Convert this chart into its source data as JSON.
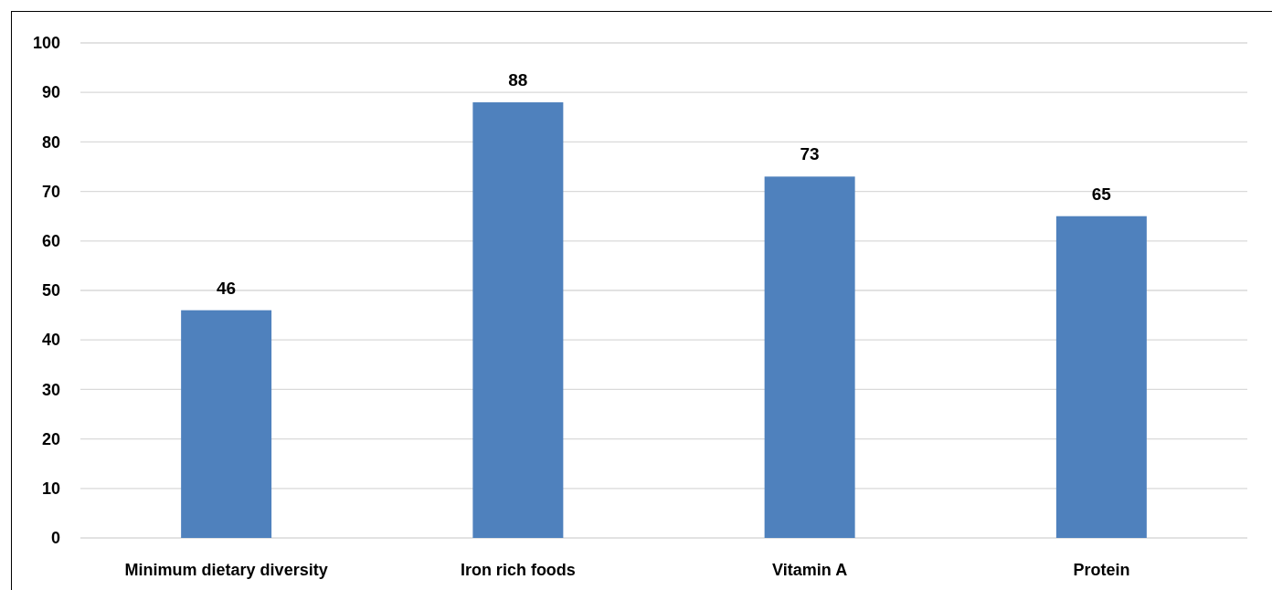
{
  "chart_data": {
    "type": "bar",
    "categories": [
      "Minimum dietary diversity",
      "Iron rich foods",
      "Vitamin A",
      "Protein"
    ],
    "values": [
      46,
      88,
      73,
      65
    ],
    "color": "#4f81bd",
    "ylim": [
      0,
      100
    ],
    "yticks": [
      0,
      10,
      20,
      30,
      40,
      50,
      60,
      70,
      80,
      90,
      100
    ],
    "grid": "y",
    "data_labels": true
  }
}
